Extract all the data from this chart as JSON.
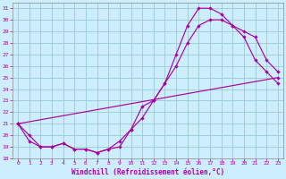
{
  "xlabel": "Windchill (Refroidissement éolien,°C)",
  "background_color": "#cceeff",
  "line_color": "#aa00aa",
  "grid_color": "#99cccc",
  "xlim": [
    -0.5,
    23.5
  ],
  "ylim": [
    18,
    31.5
  ],
  "xticks": [
    0,
    1,
    2,
    3,
    4,
    5,
    6,
    7,
    8,
    9,
    10,
    11,
    12,
    13,
    14,
    15,
    16,
    17,
    18,
    19,
    20,
    21,
    22,
    23
  ],
  "yticks": [
    18,
    19,
    20,
    21,
    22,
    23,
    24,
    25,
    26,
    27,
    28,
    29,
    30,
    31
  ],
  "line1_x": [
    0,
    1,
    2,
    3,
    4,
    5,
    6,
    7,
    8,
    9,
    10,
    11,
    12,
    13,
    14,
    15,
    16,
    17,
    18,
    19,
    20,
    21,
    22,
    23
  ],
  "line1_y": [
    21,
    20,
    19,
    19,
    19.3,
    18.8,
    18.8,
    18.5,
    18.8,
    19,
    20.5,
    22.5,
    23,
    24.5,
    27,
    29.5,
    31,
    31,
    30.5,
    29.5,
    28.5,
    26.5,
    25.5,
    24.5
  ],
  "line2_x": [
    0,
    1,
    2,
    3,
    4,
    5,
    6,
    7,
    8,
    9,
    10,
    11,
    12,
    13,
    14,
    15,
    16,
    17,
    18,
    19,
    20,
    21,
    22,
    23
  ],
  "line2_y": [
    21,
    19.5,
    19,
    19,
    19.3,
    18.8,
    18.8,
    18.5,
    18.8,
    19.5,
    20.5,
    21.5,
    23,
    24.5,
    26,
    28,
    29.5,
    30,
    30,
    29.5,
    29,
    28.5,
    26.5,
    25.5
  ],
  "line3_x": [
    0,
    23
  ],
  "line3_y": [
    21,
    25
  ]
}
